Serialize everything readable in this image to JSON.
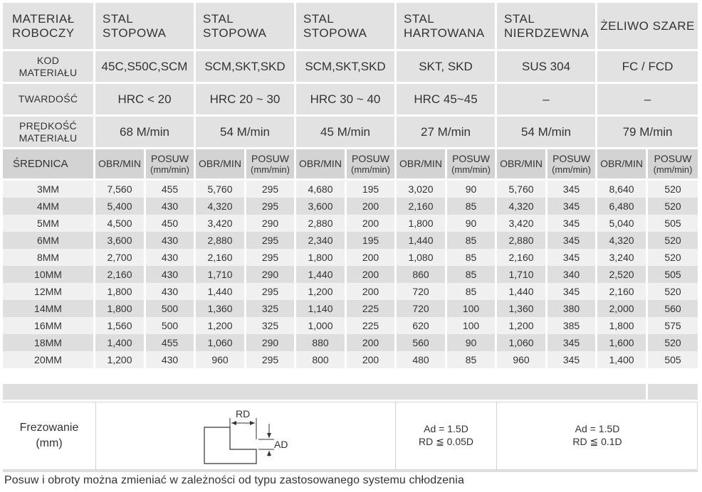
{
  "header": {
    "materials_label": [
      "MATERIAŁ",
      "ROBOCZY"
    ],
    "materials": [
      [
        "STAL",
        "STOPOWA"
      ],
      [
        "STAL",
        "STOPOWA"
      ],
      [
        "STAL",
        "STOPOWA"
      ],
      [
        "STAL",
        "HARTOWANA"
      ],
      [
        "STAL",
        "NIERDZEWNA"
      ],
      [
        "ŻELIWO SZARE"
      ]
    ],
    "kod_label": [
      "KOD",
      "MATERIAŁU"
    ],
    "kod": [
      "45C,S50C,SCM",
      "SCM,SKT,SKD",
      "SCM,SKT,SKD",
      "SKT, SKD",
      "SUS 304",
      "FC / FCD"
    ],
    "twardosc_label": "TWARDOŚĆ",
    "twardosc": [
      "HRC < 20",
      "HRC 20 ~ 30",
      "HRC 30 ~ 40",
      "HRC 45~45",
      "–",
      "–"
    ],
    "predkosc_label": [
      "PRĘDKOŚĆ",
      "MATERIAŁU"
    ],
    "predkosc": [
      "68 M/min",
      "54 M/min",
      "45 M/min",
      "27 M/min",
      "54 M/min",
      "79 M/min"
    ],
    "srednica_label": "ŚREDNICA",
    "obr_label": "OBR/MIN",
    "posuw_label": [
      "POSUW",
      "(mm/min)"
    ]
  },
  "rows": [
    [
      "3MM",
      "7,560",
      "455",
      "5,760",
      "295",
      "4,680",
      "195",
      "3,020",
      "90",
      "5,760",
      "345",
      "8,640",
      "520"
    ],
    [
      "4MM",
      "5,400",
      "430",
      "4,320",
      "295",
      "3,600",
      "200",
      "2,160",
      "85",
      "4,320",
      "345",
      "6,480",
      "520"
    ],
    [
      "5MM",
      "4,500",
      "450",
      "3,420",
      "290",
      "2,880",
      "200",
      "1,800",
      "90",
      "3,420",
      "345",
      "5,040",
      "505"
    ],
    [
      "6MM",
      "3,600",
      "430",
      "2,880",
      "295",
      "2,340",
      "195",
      "1,440",
      "85",
      "2,880",
      "345",
      "4,320",
      "520"
    ],
    [
      "8MM",
      "2,700",
      "430",
      "2,160",
      "295",
      "1,800",
      "200",
      "1,080",
      "85",
      "2,160",
      "345",
      "3,240",
      "520"
    ],
    [
      "10MM",
      "2,160",
      "430",
      "1,710",
      "290",
      "1,440",
      "200",
      "860",
      "85",
      "1,710",
      "340",
      "2,520",
      "505"
    ],
    [
      "12MM",
      "1,800",
      "430",
      "1,440",
      "295",
      "1,200",
      "200",
      "720",
      "85",
      "1,440",
      "345",
      "2,160",
      "520"
    ],
    [
      "14MM",
      "1,800",
      "500",
      "1,360",
      "325",
      "1,140",
      "225",
      "720",
      "100",
      "1,360",
      "380",
      "2,000",
      "560"
    ],
    [
      "16MM",
      "1,560",
      "500",
      "1,200",
      "325",
      "1,000",
      "225",
      "620",
      "100",
      "1,200",
      "385",
      "1,800",
      "575"
    ],
    [
      "18MM",
      "1,400",
      "455",
      "1,060",
      "290",
      "880",
      "200",
      "560",
      "90",
      "1,060",
      "345",
      "1,600",
      "520"
    ],
    [
      "20MM",
      "1,200",
      "430",
      "960",
      "295",
      "800",
      "200",
      "480",
      "85",
      "960",
      "345",
      "1,400",
      "505"
    ]
  ],
  "milling": {
    "label": [
      "Frezowanie",
      "(mm)"
    ],
    "diagram": {
      "rd": "RD",
      "ad": "AD"
    },
    "spec1": [
      "Ad = 1.5D",
      "RD ≦ 0.05D"
    ],
    "spec2": [
      "Ad = 1.5D",
      "RD ≦ 0.1D"
    ]
  },
  "note": "Posuw i obroty można zmieniać w zależności od typu zastosowanego systemu chłodzenia"
}
